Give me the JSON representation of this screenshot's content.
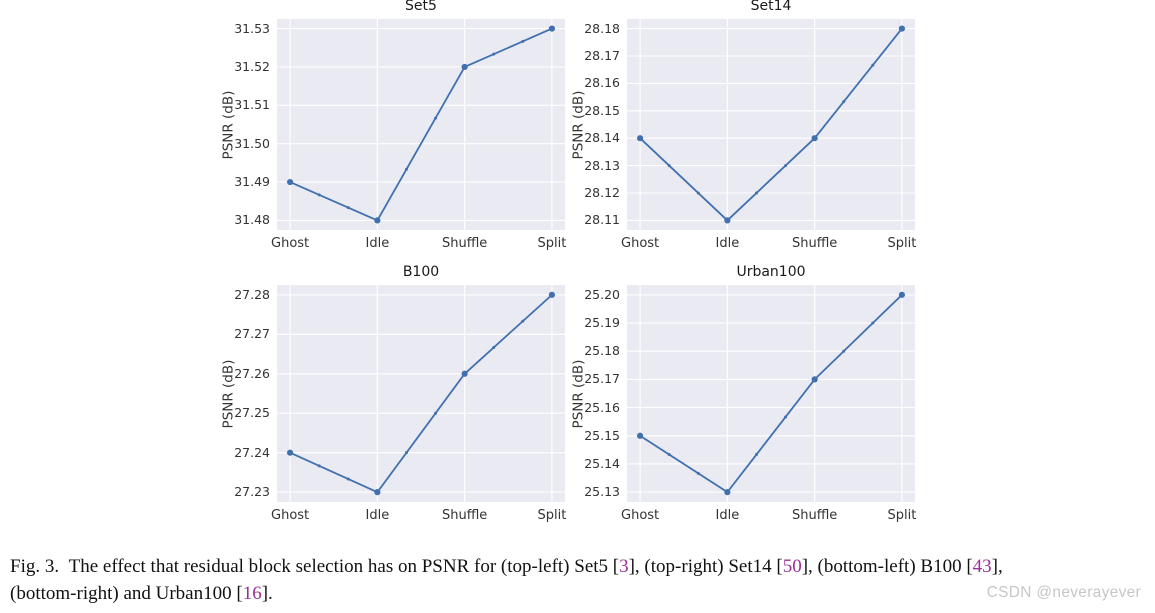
{
  "colors": {
    "line": "#4070ae",
    "plot_bg": "#eaeaf2",
    "grid": "#ffffff",
    "tick_text": "#333333",
    "title_text": "#1a1a1a",
    "caption_text": "#111111",
    "cite": "#9b3094",
    "watermark": "#c7c7c7"
  },
  "chart_data": [
    {
      "type": "line",
      "title": "Set5",
      "position": "top-left",
      "categories": [
        "Ghost",
        "Idle",
        "Shuffle",
        "Split"
      ],
      "values": [
        31.49,
        31.48,
        31.52,
        31.53
      ],
      "xlabel": "",
      "ylabel": "PSNR (dB)",
      "y_ticks": [
        "31.48",
        "31.49",
        "31.50",
        "31.51",
        "31.52",
        "31.53"
      ],
      "ylim": [
        31.4775,
        31.5325
      ],
      "xlim": [
        -0.15,
        3.15
      ],
      "grid": true,
      "legend": false
    },
    {
      "type": "line",
      "title": "Set14",
      "position": "top-right",
      "categories": [
        "Ghost",
        "Idle",
        "Shuffle",
        "Split"
      ],
      "values": [
        28.14,
        28.11,
        28.14,
        28.18
      ],
      "xlabel": "",
      "ylabel": "PSNR (dB)",
      "y_ticks": [
        "28.11",
        "28.12",
        "28.13",
        "28.14",
        "28.15",
        "28.16",
        "28.17",
        "28.18"
      ],
      "ylim": [
        28.1065,
        28.1835
      ],
      "xlim": [
        -0.15,
        3.15
      ],
      "grid": true,
      "legend": false
    },
    {
      "type": "line",
      "title": "B100",
      "position": "bottom-left",
      "categories": [
        "Ghost",
        "Idle",
        "Shuffle",
        "Split"
      ],
      "values": [
        27.24,
        27.23,
        27.26,
        27.28
      ],
      "xlabel": "",
      "ylabel": "PSNR (dB)",
      "y_ticks": [
        "27.23",
        "27.24",
        "27.25",
        "27.26",
        "27.27",
        "27.28"
      ],
      "ylim": [
        27.2275,
        27.2825
      ],
      "xlim": [
        -0.15,
        3.15
      ],
      "grid": true,
      "legend": false
    },
    {
      "type": "line",
      "title": "Urban100",
      "position": "bottom-right",
      "categories": [
        "Ghost",
        "Idle",
        "Shuffle",
        "Split"
      ],
      "values": [
        25.15,
        25.13,
        25.17,
        25.2
      ],
      "xlabel": "",
      "ylabel": "PSNR (dB)",
      "y_ticks": [
        "25.13",
        "25.14",
        "25.15",
        "25.16",
        "25.17",
        "25.18",
        "25.19",
        "25.20"
      ],
      "ylim": [
        25.1265,
        25.2035
      ],
      "xlim": [
        -0.15,
        3.15
      ],
      "grid": true,
      "legend": false
    }
  ],
  "caption": {
    "lines": [
      {
        "segments": [
          {
            "t": "Fig. 3."
          },
          {
            "t": " The effect that residual block selection has on PSNR for (top-left) Set5 ["
          },
          {
            "t": "3",
            "cite": true
          },
          {
            "t": "], (top-right) Set14 ["
          },
          {
            "t": "50",
            "cite": true
          },
          {
            "t": "], (bottom-left) B100 ["
          },
          {
            "t": "43",
            "cite": true
          },
          {
            "t": "],"
          }
        ]
      },
      {
        "segments": [
          {
            "t": "(bottom-right) and Urban100 ["
          },
          {
            "t": "16",
            "cite": true
          },
          {
            "t": "]."
          }
        ]
      }
    ]
  },
  "watermark": {
    "text": "CSDN @neverayever"
  }
}
